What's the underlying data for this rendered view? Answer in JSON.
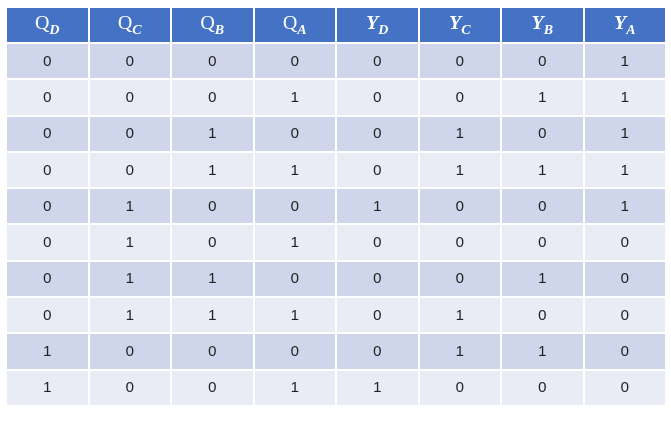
{
  "table": {
    "header": [
      {
        "main": "Q",
        "sub": "D"
      },
      {
        "main": "Q",
        "sub": "C"
      },
      {
        "main": "Q",
        "sub": "B"
      },
      {
        "main": "Q",
        "sub": "A"
      },
      {
        "main": "Y",
        "sub": "D"
      },
      {
        "main": "Y",
        "sub": "C"
      },
      {
        "main": "Y",
        "sub": "B"
      },
      {
        "main": "Y",
        "sub": "A"
      }
    ],
    "rows": [
      [
        0,
        0,
        0,
        0,
        0,
        0,
        0,
        1
      ],
      [
        0,
        0,
        0,
        1,
        0,
        0,
        1,
        1
      ],
      [
        0,
        0,
        1,
        0,
        0,
        1,
        0,
        1
      ],
      [
        0,
        0,
        1,
        1,
        0,
        1,
        1,
        1
      ],
      [
        0,
        1,
        0,
        0,
        1,
        0,
        0,
        1
      ],
      [
        0,
        1,
        0,
        1,
        0,
        0,
        0,
        0
      ],
      [
        0,
        1,
        1,
        0,
        0,
        0,
        1,
        0
      ],
      [
        0,
        1,
        1,
        1,
        0,
        1,
        0,
        0
      ],
      [
        1,
        0,
        0,
        0,
        0,
        1,
        1,
        0
      ],
      [
        1,
        0,
        0,
        1,
        1,
        0,
        0,
        0
      ]
    ]
  }
}
